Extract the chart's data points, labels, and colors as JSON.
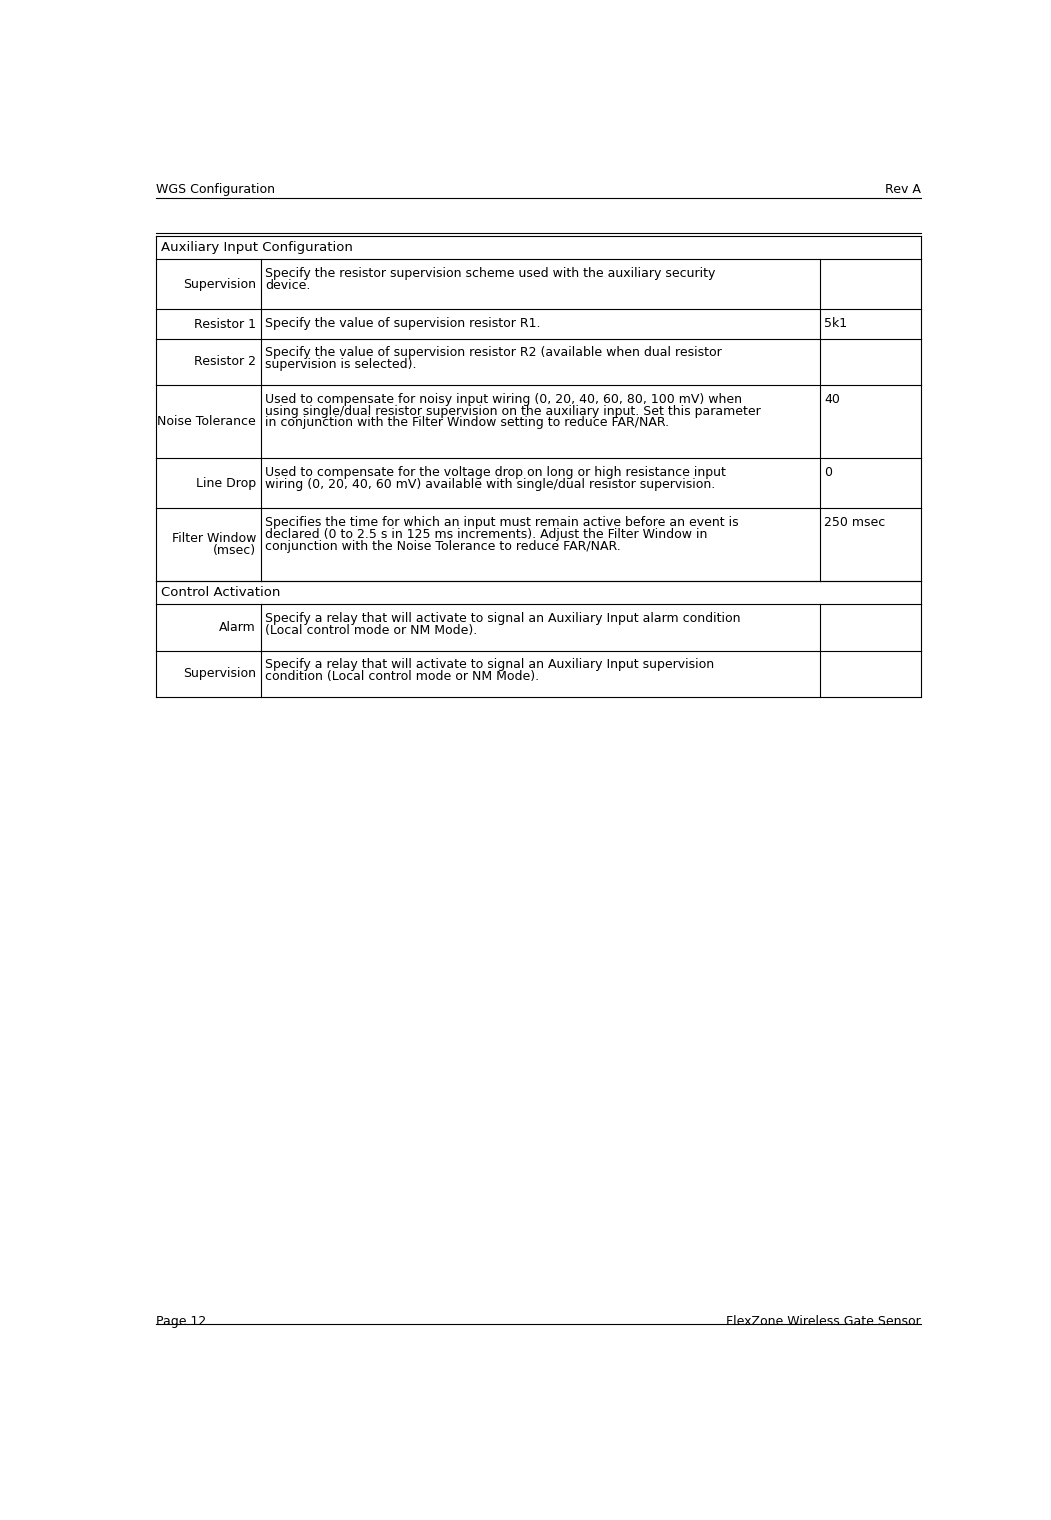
{
  "header_left": "WGS Configuration",
  "header_right": "Rev A",
  "footer_left": "Page 12",
  "footer_right": "FlexZone Wireless Gate Sensor",
  "section1_title": "Auxiliary Input Configuration",
  "section2_title": "Control Activation",
  "table_rows": [
    {
      "col1": "Supervision",
      "col2": "Specify the resistor supervision scheme used with the auxiliary security device.",
      "col3": "",
      "col2_lines": [
        "Specify the resistor supervision scheme used with the auxiliary security",
        "device."
      ]
    },
    {
      "col1": "Resistor 1",
      "col2": "Specify the value of supervision resistor R1.",
      "col3": "5k1",
      "col2_lines": [
        "Specify the value of supervision resistor R1."
      ]
    },
    {
      "col1": "Resistor 2",
      "col2": "Specify the value of supervision resistor R2 (available when dual resistor supervision is selected).",
      "col3": "",
      "col2_lines": [
        "Specify the value of supervision resistor R2 (available when dual resistor",
        "supervision is selected)."
      ]
    },
    {
      "col1": "Noise Tolerance",
      "col2": "Used to compensate for noisy input wiring (0, 20, 40, 60, 80, 100 mV) when using single/dual resistor supervision on the auxiliary input. Set this parameter in conjunction with the Filter Window setting to reduce FAR/NAR.",
      "col3": "40",
      "col2_lines": [
        "Used to compensate for noisy input wiring (0, 20, 40, 60, 80, 100 mV) when",
        "using single/dual resistor supervision on the auxiliary input. Set this parameter",
        "in conjunction with the Filter Window setting to reduce FAR/NAR."
      ]
    },
    {
      "col1": "Line Drop",
      "col2": "Used to compensate for the voltage drop on long or high resistance input wiring (0, 20, 40, 60 mV) available with single/dual resistor supervision.",
      "col3": "0",
      "col2_lines": [
        "Used to compensate for the voltage drop on long or high resistance input",
        "wiring (0, 20, 40, 60 mV) available with single/dual resistor supervision."
      ]
    },
    {
      "col1": "Filter Window\n(msec)",
      "col2": "Specifies the time for which an input must remain active before an event is declared (0 to 2.5 s in 125 ms increments). Adjust the Filter Window in conjunction with the Noise Tolerance to reduce FAR/NAR.",
      "col3": "250 msec",
      "col2_lines": [
        "Specifies the time for which an input must remain active before an event is",
        "declared (0 to 2.5 s in 125 ms increments). Adjust the Filter Window in",
        "conjunction with the Noise Tolerance to reduce FAR/NAR."
      ]
    }
  ],
  "table_rows2": [
    {
      "col1": "Alarm",
      "col2": "Specify a relay that will activate to signal an Auxiliary Input alarm condition (Local control mode or NM Mode).",
      "col3": "",
      "col2_lines": [
        "Specify a relay that will activate to signal an Auxiliary Input alarm condition",
        "(Local control mode or NM Mode)."
      ]
    },
    {
      "col1": "Supervision",
      "col2": "Specify a relay that will activate to signal an Auxiliary Input supervision condition (Local control mode or NM Mode).",
      "col3": "",
      "col2_lines": [
        "Specify a relay that will activate to signal an Auxiliary Input supervision",
        "condition (Local control mode or NM Mode)."
      ]
    }
  ],
  "bg_color": "#ffffff",
  "text_color": "#000000",
  "border_color": "#000000",
  "font_size": 9.0,
  "header_font_size": 9.0,
  "section_font_size": 9.5
}
